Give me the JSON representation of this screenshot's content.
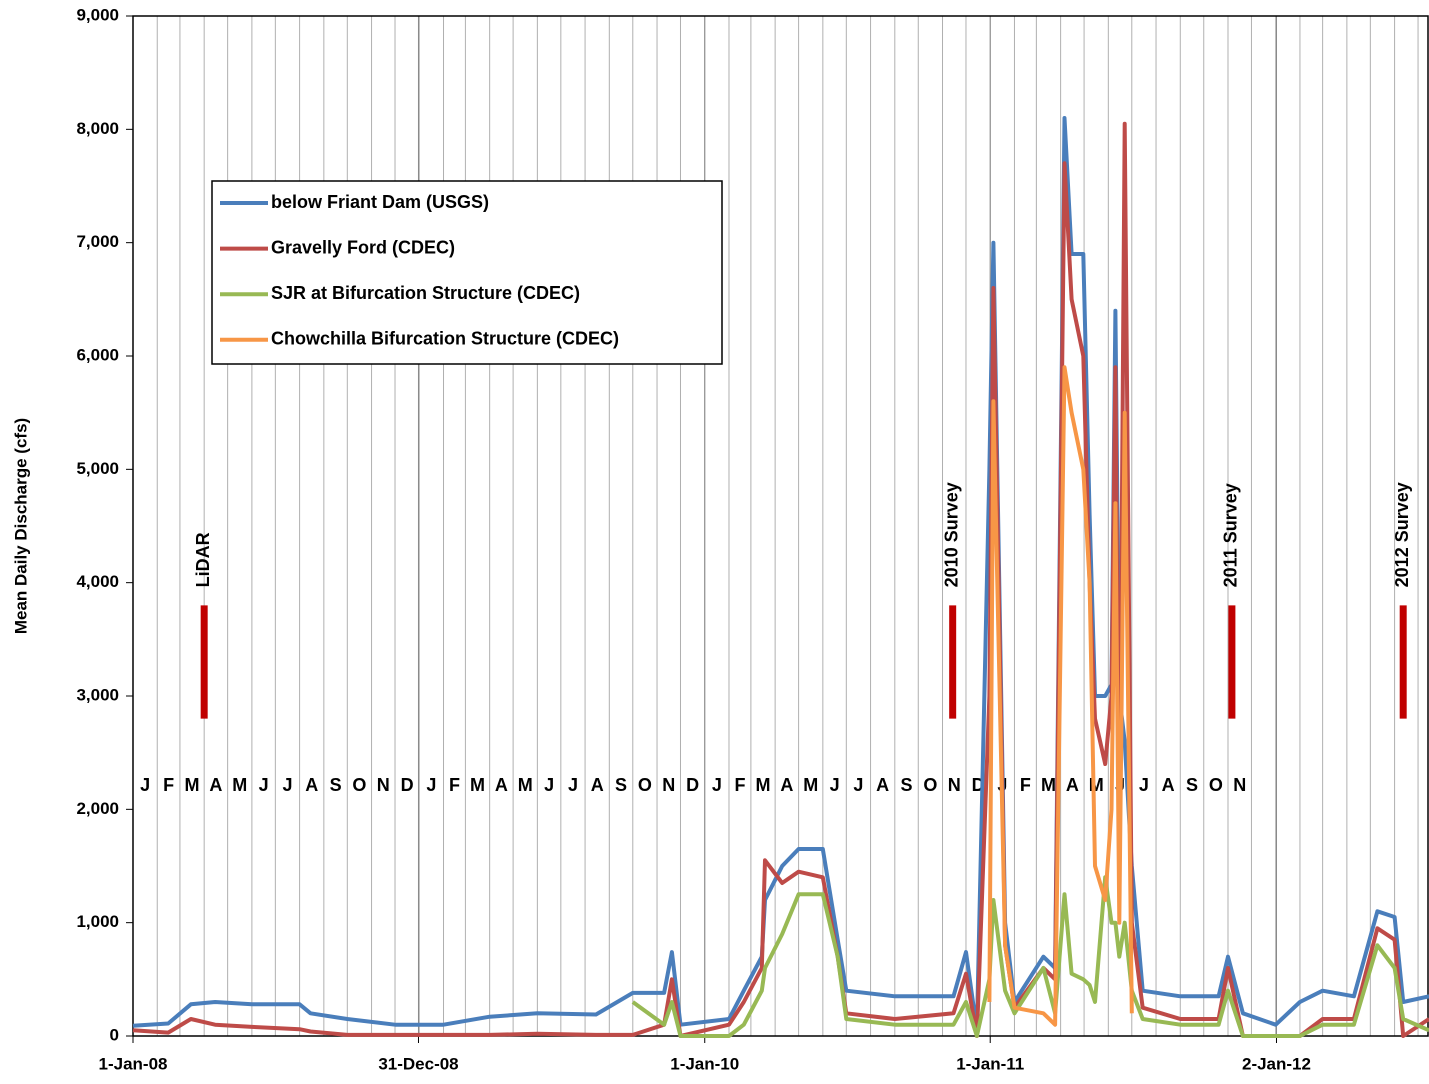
{
  "chart_data": {
    "type": "line",
    "y_label": "Mean Daily Discharge (cfs)",
    "xlim": [
      "2008-01-01",
      "2012-07-15"
    ],
    "xticks": [
      {
        "value": "2008-01-01",
        "label": "1-Jan-08"
      },
      {
        "value": "2008-12-31",
        "label": "31-Dec-08"
      },
      {
        "value": "2010-01-01",
        "label": "1-Jan-10"
      },
      {
        "value": "2011-01-01",
        "label": "1-Jan-11"
      },
      {
        "value": "2012-01-02",
        "label": "2-Jan-12"
      }
    ],
    "x_minor_grid": "monthly",
    "ylim": [
      0,
      9000
    ],
    "yticks": [
      0,
      {
        "value": 1000,
        "label": "1,000"
      },
      {
        "value": 2000,
        "label": "2,000"
      },
      {
        "value": 3000,
        "label": "3,000"
      },
      {
        "value": 4000,
        "label": "4,000"
      },
      {
        "value": 5000,
        "label": "5,000"
      },
      {
        "value": 6000,
        "label": "6,000"
      },
      {
        "value": 7000,
        "label": "7,000"
      },
      {
        "value": 8000,
        "label": "8,000"
      },
      {
        "value": 9000,
        "label": "9,000"
      }
    ],
    "month_labels": [
      "J",
      "F",
      "M",
      "A",
      "M",
      "J",
      "J",
      "A",
      "S",
      "O",
      "N",
      "D",
      "J",
      "F",
      "M",
      "A",
      "M",
      "J",
      "J",
      "A",
      "S",
      "O",
      "N",
      "D",
      "J",
      "F",
      "M",
      "A",
      "M",
      "J",
      "J",
      "A",
      "S",
      "O",
      "N",
      "D",
      "J",
      "F",
      "M",
      "A",
      "M",
      "J",
      "J",
      "A",
      "S",
      "O",
      "N"
    ],
    "events": [
      {
        "label": "LiDAR",
        "x": "2008-04-01",
        "y": [
          2800,
          3800
        ],
        "color": "#c00000"
      },
      {
        "label": "2010 Survey",
        "x": "2010-11-14",
        "y": [
          2800,
          3800
        ],
        "color": "#c00000"
      },
      {
        "label": "2011 Survey",
        "x": "2011-11-06",
        "y": [
          2800,
          3800
        ],
        "color": "#c00000"
      },
      {
        "label": "2012 Survey",
        "x": "2012-06-12",
        "y": [
          2800,
          3800
        ],
        "color": "#c00000"
      }
    ],
    "x": [
      "2008-01-01",
      "2008-02-15",
      "2008-03-15",
      "2008-04-15",
      "2008-06-01",
      "2008-08-01",
      "2008-08-15",
      "2008-10-01",
      "2008-12-01",
      "2009-02-01",
      "2009-04-01",
      "2009-06-01",
      "2009-08-15",
      "2009-10-01",
      "2009-11-10",
      "2009-11-20",
      "2009-12-01",
      "2010-02-01",
      "2010-02-20",
      "2010-03-15",
      "2010-03-19",
      "2010-04-10",
      "2010-05-01",
      "2010-06-01",
      "2010-06-20",
      "2010-07-01",
      "2010-09-01",
      "2010-11-15",
      "2010-12-01",
      "2010-12-15",
      "2010-12-31",
      "2011-01-05",
      "2011-01-20",
      "2011-02-01",
      "2011-03-10",
      "2011-03-25",
      "2011-04-06",
      "2011-04-15",
      "2011-04-30",
      "2011-05-08",
      "2011-05-15",
      "2011-05-28",
      "2011-06-05",
      "2011-06-10",
      "2011-06-15",
      "2011-06-22",
      "2011-07-01",
      "2011-07-15",
      "2011-09-01",
      "2011-10-20",
      "2011-11-01",
      "2011-11-20",
      "2012-01-01",
      "2012-02-01",
      "2012-03-01",
      "2012-04-10",
      "2012-05-10",
      "2012-06-01",
      "2012-06-12",
      "2012-07-15"
    ],
    "series": [
      {
        "name": "below Friant Dam (USGS)",
        "color": "#4a7ebb",
        "values": [
          90,
          110,
          280,
          300,
          280,
          280,
          200,
          150,
          100,
          100,
          170,
          200,
          190,
          380,
          380,
          740,
          100,
          150,
          400,
          700,
          1200,
          1500,
          1650,
          1650,
          850,
          400,
          350,
          350,
          740,
          50,
          5000,
          7000,
          1000,
          300,
          700,
          600,
          8100,
          6900,
          6900,
          4600,
          3000,
          3000,
          3100,
          6400,
          3000,
          2600,
          1500,
          400,
          350,
          350,
          700,
          200,
          100,
          300,
          400,
          350,
          1100,
          1050,
          300,
          350
        ]
      },
      {
        "name": "Gravelly Ford (CDEC)",
        "color": "#be4b48",
        "values": [
          50,
          30,
          150,
          100,
          80,
          60,
          40,
          10,
          10,
          10,
          10,
          20,
          10,
          10,
          100,
          500,
          0,
          100,
          300,
          600,
          1550,
          1350,
          1450,
          1400,
          700,
          200,
          150,
          200,
          550,
          0,
          3000,
          6600,
          800,
          250,
          600,
          500,
          7700,
          6500,
          6000,
          4000,
          2800,
          2400,
          3000,
          5900,
          1500,
          8050,
          1000,
          250,
          150,
          150,
          600,
          0,
          0,
          0,
          150,
          150,
          950,
          850,
          0,
          150
        ]
      },
      {
        "name": "SJR at Bifurcation Structure (CDEC)",
        "color": "#98b954",
        "values": [
          null,
          null,
          null,
          null,
          null,
          null,
          null,
          null,
          null,
          null,
          null,
          null,
          null,
          300,
          100,
          300,
          0,
          0,
          100,
          400,
          600,
          900,
          1250,
          1250,
          700,
          150,
          100,
          100,
          300,
          0,
          500,
          1200,
          400,
          200,
          600,
          200,
          1250,
          550,
          500,
          450,
          300,
          1400,
          1000,
          1000,
          700,
          1000,
          400,
          150,
          100,
          100,
          400,
          0,
          0,
          0,
          100,
          100,
          800,
          600,
          150,
          50
        ]
      },
      {
        "name": "Chowchilla Bifurcation Structure (CDEC)",
        "color": "#f79646",
        "values": [
          null,
          null,
          null,
          null,
          null,
          null,
          null,
          null,
          null,
          null,
          null,
          null,
          null,
          null,
          null,
          null,
          null,
          null,
          null,
          null,
          null,
          null,
          null,
          null,
          null,
          null,
          null,
          null,
          null,
          null,
          300,
          5600,
          800,
          250,
          200,
          100,
          5900,
          5500,
          5000,
          4000,
          1500,
          1200,
          2000,
          4700,
          1000,
          5500,
          200,
          null,
          null,
          null,
          null,
          null,
          null,
          null,
          null,
          null,
          null,
          null,
          null,
          null
        ]
      }
    ]
  }
}
